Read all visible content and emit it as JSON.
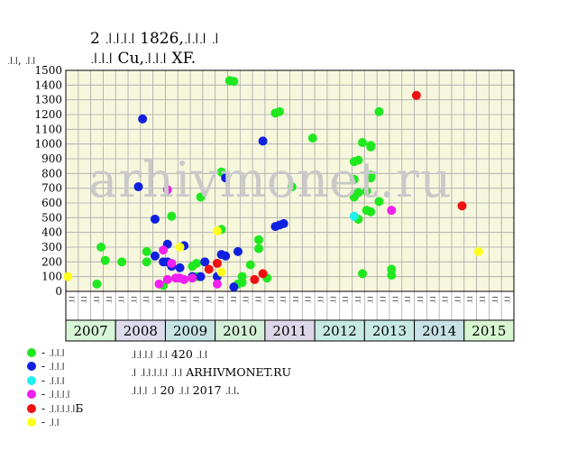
{
  "title_line1": "2 ꜌꜌꜌꜌ 1826,꜌꜌꜌ ꜌",
  "title_line2": "꜌꜌꜌ Cu,꜌꜌꜌ XF.",
  "watermark": "arhivmonet.ru",
  "colors": {
    "plot_bg": "#f7f7dd",
    "grid": "#a8a8a8",
    "green": "#1fe81f",
    "blue": "#1020e0",
    "cyan": "#20f0f0",
    "magenta": "#f020f0",
    "red": "#f01010",
    "yellow": "#ffff20"
  },
  "legend": [
    {
      "color": "green",
      "label": "- ꜌꜌꜌"
    },
    {
      "color": "blue",
      "label": "- ꜌꜌꜌"
    },
    {
      "color": "cyan",
      "label": "- ꜌꜌꜌"
    },
    {
      "color": "magenta",
      "label": "- ꜌꜌꜌꜌"
    },
    {
      "color": "red",
      "label": "- ꜌꜌꜌꜌꜌Б"
    },
    {
      "color": "yellow",
      "label": "- ꜌꜌"
    }
  ],
  "notes": [
    "꜌꜌꜌꜌ ꜌꜌ 420 ꜌꜌",
    "꜌ ꜌꜌꜌꜌꜌ ꜌꜌ ARHIVMONET.RU",
    "꜌꜌꜌ ꜌ 20 ꜌꜌ 2017 ꜌꜌."
  ],
  "chart_data": {
    "type": "scatter",
    "title": "2 ꜌꜌꜌꜌ 1826,꜌꜌꜌ ꜌ ꜌꜌꜌ Cu,꜌꜌꜌ XF.",
    "ylabel": "꜌꜌, ꜌꜌",
    "ylim": [
      0,
      1500
    ],
    "yticks": [
      0,
      100,
      200,
      300,
      400,
      500,
      600,
      700,
      800,
      900,
      1000,
      1100,
      1200,
      1300,
      1400,
      1500
    ],
    "grid": true,
    "quarter_labels": [
      "꜌꜌",
      "꜌꜌",
      "꜌꜌",
      "꜌꜌"
    ],
    "year_labels": [
      "2007",
      "2008",
      "2009",
      "2010",
      "2011",
      "2012",
      "2013",
      "2014",
      "2015"
    ],
    "year_colors": [
      "#d7f5d7",
      "#dedcec",
      "#c7e4e4",
      "#d5f0d8",
      "#dcd7e8",
      "#c6e9e4",
      "#c6e9e4",
      "#c7e1e4",
      "#d7f5d0"
    ],
    "x_start": "2007-01",
    "x_end": "2015-12",
    "series": [
      {
        "name": "꜌꜌꜌",
        "color": "green",
        "points": [
          [
            "2007-08",
            50
          ],
          [
            "2007-09",
            300
          ],
          [
            "2007-10",
            210
          ],
          [
            "2008-02",
            200
          ],
          [
            "2008-08",
            270
          ],
          [
            "2008-08",
            200
          ],
          [
            "2008-12",
            40
          ],
          [
            "2009-02",
            510
          ],
          [
            "2009-07",
            170
          ],
          [
            "2009-08",
            190
          ],
          [
            "2009-08",
            100
          ],
          [
            "2009-09",
            640
          ],
          [
            "2010-02",
            810
          ],
          [
            "2010-02",
            420
          ],
          [
            "2010-04",
            1430
          ],
          [
            "2010-04",
            1430
          ],
          [
            "2010-05",
            1425
          ],
          [
            "2010-06",
            50
          ],
          [
            "2010-07",
            100
          ],
          [
            "2010-07",
            60
          ],
          [
            "2010-09",
            180
          ],
          [
            "2010-11",
            350
          ],
          [
            "2010-11",
            290
          ],
          [
            "2011-01",
            90
          ],
          [
            "2011-03",
            1210
          ],
          [
            "2011-04",
            1220
          ],
          [
            "2011-07",
            710
          ],
          [
            "2011-12",
            1040
          ],
          [
            "2012-10",
            880
          ],
          [
            "2012-10",
            760
          ],
          [
            "2012-11",
            890
          ],
          [
            "2012-11",
            490
          ],
          [
            "2012-12",
            1010
          ],
          [
            "2012-12",
            120
          ],
          [
            "2013-01",
            680
          ],
          [
            "2013-01",
            550
          ],
          [
            "2013-02",
            990
          ],
          [
            "2013-02",
            980
          ],
          [
            "2013-02",
            790
          ],
          [
            "2013-02",
            770
          ],
          [
            "2013-02",
            540
          ],
          [
            "2013-04",
            610
          ],
          [
            "2013-04",
            1220
          ],
          [
            "2013-07",
            150
          ],
          [
            "2013-07",
            110
          ],
          [
            "2012-10",
            640
          ],
          [
            "2012-11",
            670
          ]
        ]
      },
      {
        "name": "꜌꜌꜌",
        "color": "blue",
        "points": [
          [
            "2008-06",
            710
          ],
          [
            "2008-07",
            1170
          ],
          [
            "2008-10",
            240
          ],
          [
            "2008-10",
            490
          ],
          [
            "2008-12",
            200
          ],
          [
            "2009-01",
            320
          ],
          [
            "2009-01",
            200
          ],
          [
            "2009-02",
            170
          ],
          [
            "2009-04",
            160
          ],
          [
            "2009-05",
            310
          ],
          [
            "2009-07",
            100
          ],
          [
            "2009-09",
            100
          ],
          [
            "2009-10",
            200
          ],
          [
            "2010-01",
            100
          ],
          [
            "2010-02",
            250
          ],
          [
            "2010-03",
            240
          ],
          [
            "2010-03",
            770
          ],
          [
            "2010-05",
            30
          ],
          [
            "2010-06",
            270
          ],
          [
            "2010-12",
            1020
          ],
          [
            "2011-03",
            440
          ],
          [
            "2011-04",
            450
          ],
          [
            "2011-05",
            460
          ]
        ]
      },
      {
        "name": "꜌꜌꜌",
        "color": "cyan",
        "points": [
          [
            "2012-10",
            510
          ]
        ]
      },
      {
        "name": "꜌꜌꜌꜌",
        "color": "magenta",
        "points": [
          [
            "2008-11",
            50
          ],
          [
            "2008-12",
            280
          ],
          [
            "2009-01",
            80
          ],
          [
            "2009-01",
            690
          ],
          [
            "2009-02",
            190
          ],
          [
            "2009-03",
            90
          ],
          [
            "2009-04",
            90
          ],
          [
            "2009-05",
            80
          ],
          [
            "2009-07",
            90
          ],
          [
            "2010-01",
            50
          ],
          [
            "2013-07",
            550
          ]
        ]
      },
      {
        "name": "꜌꜌꜌꜌꜌Б",
        "color": "red",
        "points": [
          [
            "2009-11",
            150
          ],
          [
            "2010-01",
            190
          ],
          [
            "2010-10",
            80
          ],
          [
            "2010-12",
            120
          ],
          [
            "2014-01",
            1330
          ],
          [
            "2014-12",
            580
          ]
        ]
      },
      {
        "name": "꜌꜌",
        "color": "yellow",
        "points": [
          [
            "2007-01",
            100
          ],
          [
            "2009-04",
            300
          ],
          [
            "2010-01",
            410
          ],
          [
            "2010-02",
            130
          ],
          [
            "2015-04",
            270
          ]
        ]
      }
    ]
  }
}
